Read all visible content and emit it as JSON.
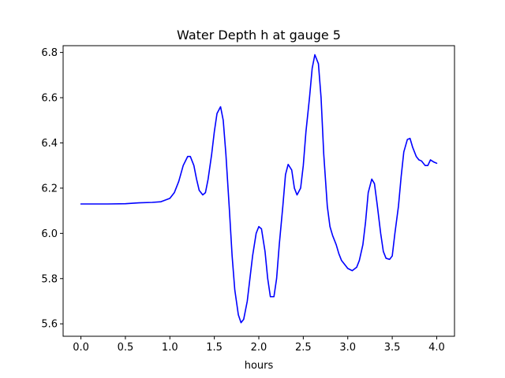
{
  "chart_data": {
    "type": "line",
    "title": "Water Depth h at gauge 5",
    "xlabel": "hours",
    "ylabel": "",
    "xlim": [
      -0.2,
      4.2
    ],
    "ylim": [
      5.545,
      6.83
    ],
    "xticks": [
      0.0,
      0.5,
      1.0,
      1.5,
      2.0,
      2.5,
      3.0,
      3.5,
      4.0
    ],
    "xtick_labels": [
      "0.0",
      "0.5",
      "1.0",
      "1.5",
      "2.0",
      "2.5",
      "3.0",
      "3.5",
      "4.0"
    ],
    "yticks": [
      5.6,
      5.8,
      6.0,
      6.2,
      6.4,
      6.6,
      6.8
    ],
    "ytick_labels": [
      "5.6",
      "5.8",
      "6.0",
      "6.2",
      "6.4",
      "6.6",
      "6.8"
    ],
    "grid": false,
    "series": [
      {
        "color": "#0000ff",
        "x": [
          0.0,
          0.3,
          0.5,
          0.65,
          0.8,
          0.9,
          1.0,
          1.05,
          1.1,
          1.15,
          1.2,
          1.23,
          1.27,
          1.3,
          1.33,
          1.37,
          1.4,
          1.43,
          1.47,
          1.5,
          1.53,
          1.57,
          1.6,
          1.63,
          1.67,
          1.7,
          1.73,
          1.77,
          1.8,
          1.83,
          1.87,
          1.9,
          1.93,
          1.97,
          2.0,
          2.03,
          2.07,
          2.1,
          2.13,
          2.17,
          2.2,
          2.23,
          2.27,
          2.3,
          2.33,
          2.37,
          2.4,
          2.43,
          2.47,
          2.5,
          2.53,
          2.57,
          2.6,
          2.63,
          2.67,
          2.7,
          2.73,
          2.77,
          2.8,
          2.83,
          2.87,
          2.9,
          2.93,
          2.97,
          3.0,
          3.05,
          3.1,
          3.13,
          3.17,
          3.2,
          3.23,
          3.27,
          3.3,
          3.33,
          3.37,
          3.4,
          3.43,
          3.47,
          3.5,
          3.53,
          3.57,
          3.6,
          3.63,
          3.67,
          3.7,
          3.73,
          3.77,
          3.8,
          3.83,
          3.87,
          3.9,
          3.93,
          3.97,
          4.0
        ],
        "y": [
          6.13,
          6.13,
          6.131,
          6.135,
          6.137,
          6.14,
          6.155,
          6.18,
          6.23,
          6.3,
          6.34,
          6.34,
          6.3,
          6.24,
          6.19,
          6.17,
          6.18,
          6.24,
          6.35,
          6.45,
          6.53,
          6.56,
          6.5,
          6.35,
          6.1,
          5.9,
          5.75,
          5.64,
          5.605,
          5.62,
          5.7,
          5.8,
          5.9,
          6.0,
          6.03,
          6.02,
          5.92,
          5.8,
          5.72,
          5.72,
          5.8,
          5.95,
          6.12,
          6.26,
          6.305,
          6.28,
          6.2,
          6.17,
          6.2,
          6.3,
          6.45,
          6.6,
          6.73,
          6.79,
          6.75,
          6.6,
          6.35,
          6.12,
          6.03,
          5.99,
          5.95,
          5.91,
          5.88,
          5.86,
          5.845,
          5.835,
          5.85,
          5.88,
          5.95,
          6.05,
          6.18,
          6.24,
          6.22,
          6.13,
          6.0,
          5.92,
          5.89,
          5.885,
          5.9,
          6.0,
          6.12,
          6.25,
          6.36,
          6.415,
          6.42,
          6.38,
          6.34,
          6.325,
          6.32,
          6.3,
          6.3,
          6.325,
          6.315,
          6.31
        ]
      }
    ]
  }
}
